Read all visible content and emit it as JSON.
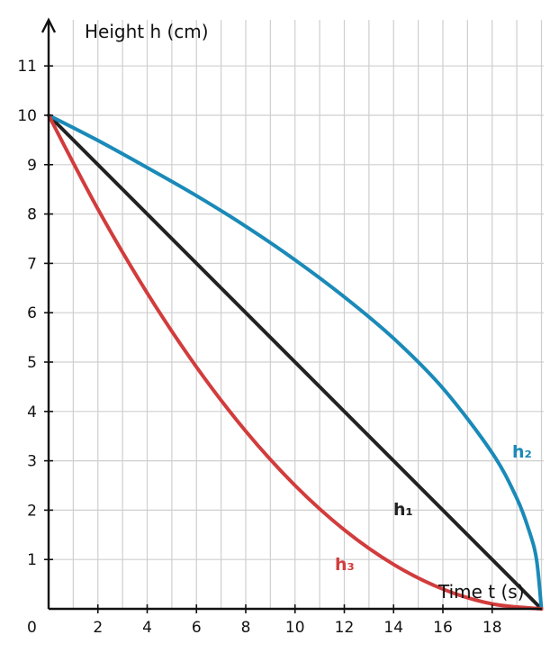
{
  "chart_data": {
    "type": "line",
    "title": "",
    "xlabel": "Time t (s)",
    "ylabel": "Height h (cm)",
    "xlim": [
      0,
      20
    ],
    "ylim": [
      0,
      11.5
    ],
    "grid": true,
    "origin_label": "0",
    "x_ticks": [
      2,
      4,
      6,
      8,
      10,
      12,
      14,
      16,
      18
    ],
    "y_ticks": [
      1,
      2,
      3,
      4,
      5,
      6,
      7,
      8,
      9,
      10,
      11
    ],
    "series": [
      {
        "name": "h₁",
        "color": "#222222",
        "x": [
          0,
          20
        ],
        "y": [
          10,
          0
        ]
      },
      {
        "name": "h₂",
        "color": "#1a8ab8",
        "x": [
          0,
          2,
          4,
          6,
          8,
          10,
          12,
          14,
          16,
          18,
          19,
          19.5,
          19.8,
          20
        ],
        "y": [
          10,
          9.49,
          8.94,
          8.37,
          7.75,
          7.07,
          6.32,
          5.48,
          4.47,
          3.16,
          2.24,
          1.58,
          1.0,
          0
        ]
      },
      {
        "name": "h₃",
        "color": "#d23c3c",
        "x": [
          0,
          2,
          4,
          6,
          8,
          10,
          12,
          14,
          16,
          18,
          20
        ],
        "y": [
          10,
          8.1,
          6.4,
          4.9,
          3.6,
          2.5,
          1.6,
          0.9,
          0.4,
          0.1,
          0
        ]
      }
    ]
  }
}
